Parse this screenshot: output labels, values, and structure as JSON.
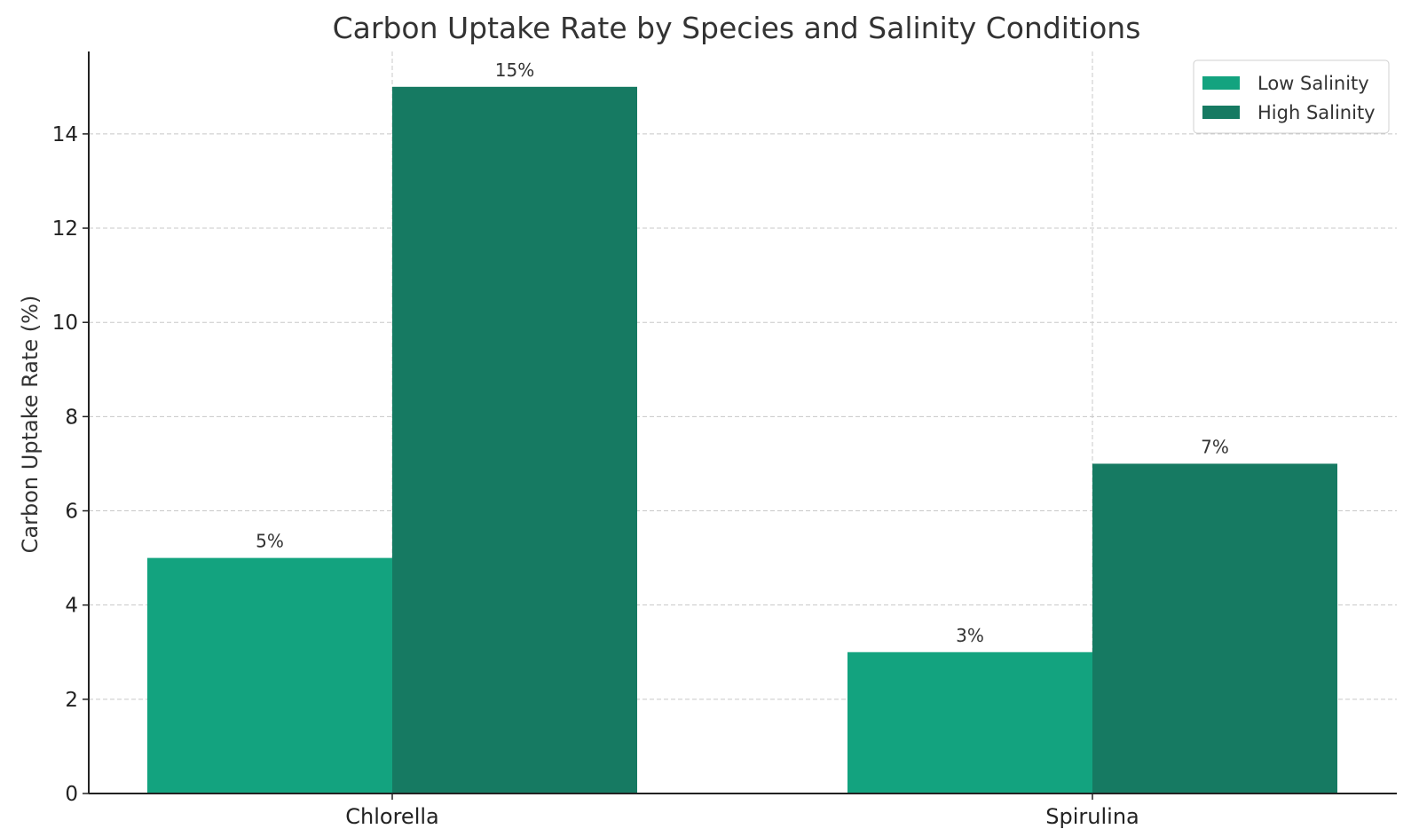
{
  "chart_data": {
    "type": "bar",
    "title": "Carbon Uptake Rate by Species and Salinity Conditions",
    "xlabel": "",
    "ylabel": "Carbon Uptake Rate (%)",
    "categories": [
      "Chlorella",
      "Spirulina"
    ],
    "series": [
      {
        "name": "Low Salinity",
        "values": [
          5,
          3
        ],
        "labels": [
          "5%",
          "3%"
        ],
        "color": "#13a37f"
      },
      {
        "name": "High Salinity",
        "values": [
          15,
          7
        ],
        "labels": [
          "15%",
          "7%"
        ],
        "color": "#167a62"
      }
    ],
    "ylim": [
      0,
      15.75
    ],
    "yticks": [
      0,
      2,
      4,
      6,
      8,
      10,
      12,
      14
    ],
    "grid": true,
    "legend_position": "top-right"
  }
}
